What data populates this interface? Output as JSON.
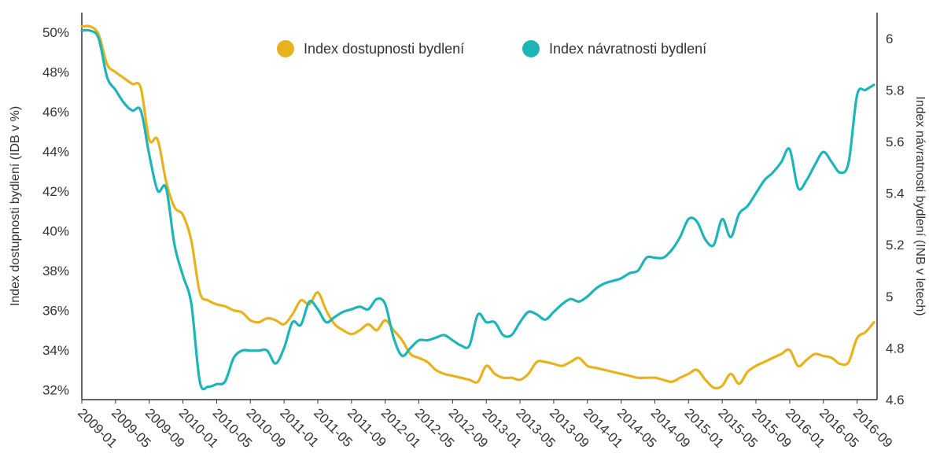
{
  "chart_data": {
    "type": "line",
    "xlabel": "",
    "ylabel": "Index dostupnosti bydlení (IDB v %)",
    "y2label": "Index návratnosti bydlení (INB v letech)",
    "ylim": [
      31.5,
      51
    ],
    "y2lim": [
      4.6,
      6.1
    ],
    "x_ticks": [
      "2009-01",
      "2009-05",
      "2009-09",
      "2010-01",
      "2010-05",
      "2010-09",
      "2011-01",
      "2011-05",
      "2011-09",
      "2012-01",
      "2012-05",
      "2012-09",
      "2013-01",
      "2013-05",
      "2013-09",
      "2014-01",
      "2014-05",
      "2014-09",
      "2015-01",
      "2015-05",
      "2015-09",
      "2016-01",
      "2016-05",
      "2016-09"
    ],
    "y_ticks": [
      "32%",
      "34%",
      "36%",
      "38%",
      "40%",
      "42%",
      "44%",
      "46%",
      "48%",
      "50%"
    ],
    "y2_ticks": [
      "4.6",
      "4.8",
      "5",
      "5.2",
      "5.4",
      "5.6",
      "5.8",
      "6"
    ],
    "legend_position": "top-center",
    "grid": false,
    "colors": {
      "idb": "#e6b31e",
      "inb": "#1fb5b8",
      "axis": "#333333"
    },
    "series": [
      {
        "name": "Index dostupnosti bydlení",
        "axis": "left",
        "color": "#e6b31e",
        "x": [
          "2009-01",
          "2009-02",
          "2009-03",
          "2009-04",
          "2009-05",
          "2009-06",
          "2009-07",
          "2009-08",
          "2009-09",
          "2009-10",
          "2009-11",
          "2009-12",
          "2010-01",
          "2010-02",
          "2010-03",
          "2010-04",
          "2010-05",
          "2010-06",
          "2010-07",
          "2010-08",
          "2010-09",
          "2010-10",
          "2010-11",
          "2010-12",
          "2011-01",
          "2011-02",
          "2011-03",
          "2011-04",
          "2011-05",
          "2011-06",
          "2011-07",
          "2011-08",
          "2011-09",
          "2011-10",
          "2011-11",
          "2011-12",
          "2012-01",
          "2012-02",
          "2012-03",
          "2012-04",
          "2012-05",
          "2012-06",
          "2012-07",
          "2012-08",
          "2012-09",
          "2012-10",
          "2012-11",
          "2012-12",
          "2013-01",
          "2013-02",
          "2013-03",
          "2013-04",
          "2013-05",
          "2013-06",
          "2013-07",
          "2013-08",
          "2013-09",
          "2013-10",
          "2013-11",
          "2013-12",
          "2014-01",
          "2014-02",
          "2014-03",
          "2014-04",
          "2014-05",
          "2014-06",
          "2014-07",
          "2014-08",
          "2014-09",
          "2014-10",
          "2014-11",
          "2014-12",
          "2015-01",
          "2015-02",
          "2015-03",
          "2015-04",
          "2015-05",
          "2015-06",
          "2015-07",
          "2015-08",
          "2015-09",
          "2015-10",
          "2015-11",
          "2015-12",
          "2016-01",
          "2016-02",
          "2016-03",
          "2016-04",
          "2016-05",
          "2016-06",
          "2016-07",
          "2016-08",
          "2016-09",
          "2016-10",
          "2016-11"
        ],
        "values": [
          50.3,
          50.3,
          49.9,
          48.4,
          48.0,
          47.7,
          47.4,
          47.2,
          44.6,
          44.6,
          42.5,
          41.2,
          40.8,
          39.5,
          36.9,
          36.5,
          36.3,
          36.2,
          36.0,
          35.9,
          35.5,
          35.4,
          35.6,
          35.5,
          35.3,
          35.8,
          36.5,
          36.3,
          36.9,
          36.0,
          35.3,
          35.0,
          34.8,
          35.0,
          35.3,
          35.0,
          35.5,
          35.0,
          34.5,
          33.8,
          33.6,
          33.4,
          33.0,
          32.8,
          32.7,
          32.6,
          32.5,
          32.4,
          33.2,
          32.8,
          32.6,
          32.6,
          32.5,
          32.8,
          33.4,
          33.4,
          33.3,
          33.2,
          33.4,
          33.6,
          33.2,
          33.1,
          33.0,
          32.9,
          32.8,
          32.7,
          32.6,
          32.6,
          32.6,
          32.5,
          32.4,
          32.6,
          32.8,
          33.0,
          32.5,
          32.1,
          32.2,
          32.8,
          32.3,
          32.9,
          33.2,
          33.4,
          33.6,
          33.8,
          34.0,
          33.2,
          33.5,
          33.8,
          33.7,
          33.6,
          33.3,
          33.4,
          34.6,
          34.9,
          35.4
        ]
      },
      {
        "name": "Index návratnosti bydlení",
        "axis": "right",
        "color": "#1fb5b8",
        "x": [
          "2009-01",
          "2009-02",
          "2009-03",
          "2009-04",
          "2009-05",
          "2009-06",
          "2009-07",
          "2009-08",
          "2009-09",
          "2009-10",
          "2009-11",
          "2009-12",
          "2010-01",
          "2010-02",
          "2010-03",
          "2010-04",
          "2010-05",
          "2010-06",
          "2010-07",
          "2010-08",
          "2010-09",
          "2010-10",
          "2010-11",
          "2010-12",
          "2011-01",
          "2011-02",
          "2011-03",
          "2011-04",
          "2011-05",
          "2011-06",
          "2011-07",
          "2011-08",
          "2011-09",
          "2011-10",
          "2011-11",
          "2011-12",
          "2012-01",
          "2012-02",
          "2012-03",
          "2012-04",
          "2012-05",
          "2012-06",
          "2012-07",
          "2012-08",
          "2012-09",
          "2012-10",
          "2012-11",
          "2012-12",
          "2013-01",
          "2013-02",
          "2013-03",
          "2013-04",
          "2013-05",
          "2013-06",
          "2013-07",
          "2013-08",
          "2013-09",
          "2013-10",
          "2013-11",
          "2013-12",
          "2014-01",
          "2014-02",
          "2014-03",
          "2014-04",
          "2014-05",
          "2014-06",
          "2014-07",
          "2014-08",
          "2014-09",
          "2014-10",
          "2014-11",
          "2014-12",
          "2015-01",
          "2015-02",
          "2015-03",
          "2015-04",
          "2015-05",
          "2015-06",
          "2015-07",
          "2015-08",
          "2015-09",
          "2015-10",
          "2015-11",
          "2015-12",
          "2016-01",
          "2016-02",
          "2016-03",
          "2016-04",
          "2016-05",
          "2016-06",
          "2016-07",
          "2016-08",
          "2016-09",
          "2016-10",
          "2016-11"
        ],
        "values": [
          6.03,
          6.03,
          6.0,
          5.85,
          5.8,
          5.75,
          5.72,
          5.72,
          5.55,
          5.41,
          5.42,
          5.2,
          5.08,
          4.97,
          4.67,
          4.65,
          4.66,
          4.67,
          4.76,
          4.79,
          4.79,
          4.79,
          4.79,
          4.74,
          4.8,
          4.9,
          4.89,
          4.98,
          4.95,
          4.9,
          4.92,
          4.94,
          4.95,
          4.96,
          4.95,
          4.99,
          4.97,
          4.84,
          4.77,
          4.8,
          4.83,
          4.83,
          4.84,
          4.85,
          4.83,
          4.81,
          4.81,
          4.93,
          4.9,
          4.9,
          4.85,
          4.85,
          4.9,
          4.94,
          4.93,
          4.91,
          4.94,
          4.97,
          4.99,
          4.98,
          5.0,
          5.03,
          5.05,
          5.06,
          5.07,
          5.09,
          5.1,
          5.15,
          5.15,
          5.15,
          5.18,
          5.23,
          5.3,
          5.29,
          5.22,
          5.2,
          5.3,
          5.23,
          5.32,
          5.35,
          5.4,
          5.45,
          5.48,
          5.52,
          5.57,
          5.42,
          5.45,
          5.51,
          5.56,
          5.52,
          5.48,
          5.52,
          5.78,
          5.8,
          5.82
        ]
      }
    ]
  }
}
